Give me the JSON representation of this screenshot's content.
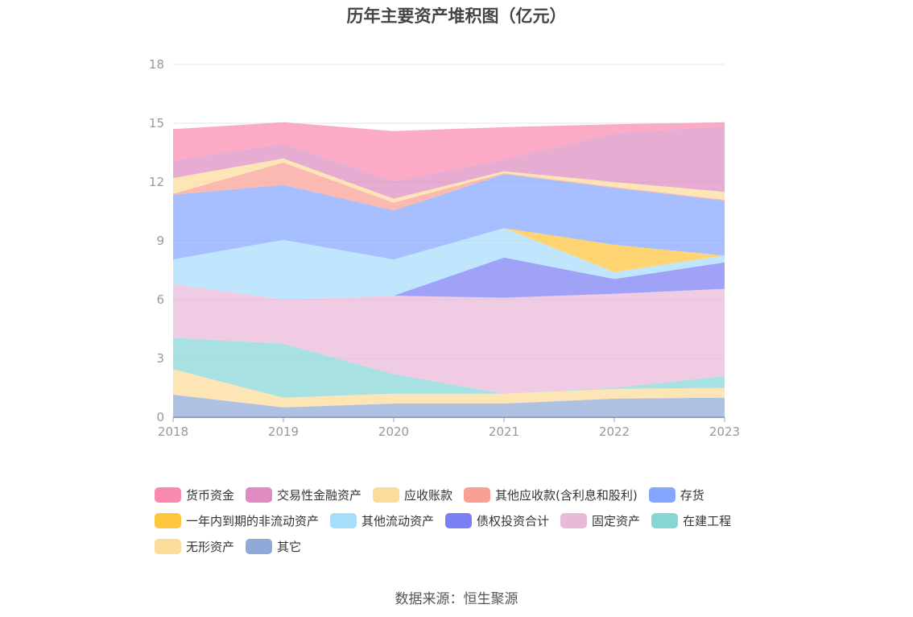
{
  "title": "历年主要资产堆积图（亿元）",
  "source": "数据来源：恒生聚源",
  "chart_data": {
    "type": "area",
    "stacked": true,
    "title": "历年主要资产堆积图（亿元）",
    "xlabel": "",
    "ylabel": "",
    "x": [
      "2018",
      "2019",
      "2020",
      "2021",
      "2022",
      "2023"
    ],
    "ylim": [
      0,
      18
    ],
    "yticks": [
      "0",
      "3",
      "6",
      "9",
      "12",
      "15"
    ],
    "ytick_values": [
      0,
      3,
      6,
      9,
      12,
      15
    ],
    "ymax_label": "18",
    "grid": true,
    "legend_position": "bottom",
    "series": [
      {
        "name": "其它",
        "color": "#8fa9d8",
        "values": [
          1.15,
          0.5,
          0.7,
          0.7,
          0.95,
          1.0
        ]
      },
      {
        "name": "无形资产",
        "color": "#fddb9a",
        "values": [
          1.3,
          0.5,
          0.5,
          0.5,
          0.5,
          0.5
        ]
      },
      {
        "name": "在建工程",
        "color": "#86d6d6",
        "values": [
          1.6,
          2.75,
          1.0,
          0.0,
          0.05,
          0.6
        ]
      },
      {
        "name": "固定资产",
        "color": "#e9b9d9",
        "values": [
          2.75,
          2.25,
          4.0,
          4.9,
          4.8,
          4.45
        ]
      },
      {
        "name": "债权投资合计",
        "color": "#7b7ef5",
        "values": [
          0,
          0,
          0,
          2.05,
          0.75,
          1.35
        ]
      },
      {
        "name": "其他流动资产",
        "color": "#a6ddfb",
        "values": [
          1.25,
          3.05,
          1.85,
          1.5,
          0.35,
          0.35
        ]
      },
      {
        "name": "一年内到期的非流动资产",
        "color": "#ffc53d",
        "values": [
          0,
          0,
          0,
          0,
          1.4,
          0
        ]
      },
      {
        "name": "存货",
        "color": "#85a5ff",
        "values": [
          3.3,
          2.8,
          2.5,
          2.75,
          2.9,
          2.8
        ]
      },
      {
        "name": "其他应收款(含利息和股利)",
        "color": "#f9a093",
        "values": [
          0.05,
          1.15,
          0.4,
          0.05,
          0.05,
          0.05
        ]
      },
      {
        "name": "应收账款",
        "color": "#fddb9a",
        "values": [
          0.8,
          0.2,
          0.2,
          0.1,
          0.25,
          0.4
        ]
      },
      {
        "name": "交易性金融资产",
        "color": "#de8cc1",
        "values": [
          0.9,
          0.75,
          0.9,
          0.6,
          2.5,
          3.35
        ]
      },
      {
        "name": "货币资金",
        "color": "#f98aae",
        "values": [
          1.6,
          1.1,
          2.55,
          1.65,
          0.45,
          0.2
        ]
      }
    ],
    "legend_order": [
      [
        "货币资金",
        "交易性金融资产",
        "应收账款",
        "其他应收款(含利息和股利)",
        "存货"
      ],
      [
        "一年内到期的非流动资产",
        "其他流动资产",
        "债权投资合计",
        "固定资产",
        "在建工程"
      ],
      [
        "无形资产",
        "其它"
      ]
    ]
  }
}
